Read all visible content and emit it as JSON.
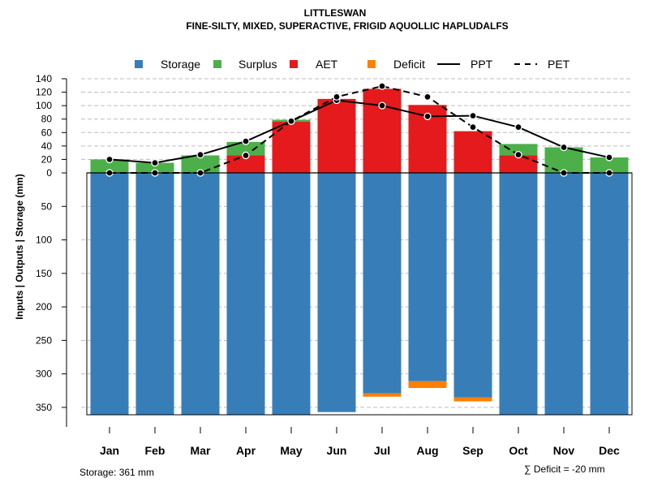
{
  "chart_data": {
    "type": "bar",
    "title": "LITTLESWAN",
    "subtitle": "FINE-SILTY, MIXED, SUPERACTIVE, FRIGID AQUOLLIC HAPLUDALFS",
    "ylabel": "Inputs | Outputs | Storage    (mm)",
    "categories": [
      "Jan",
      "Feb",
      "Mar",
      "Apr",
      "May",
      "Jun",
      "Jul",
      "Aug",
      "Sep",
      "Oct",
      "Nov",
      "Dec"
    ],
    "upper_ticks": [
      "0",
      "20",
      "40",
      "60",
      "80",
      "100",
      "120",
      "140"
    ],
    "upper_tick_values": [
      0,
      20,
      40,
      60,
      80,
      100,
      120,
      140
    ],
    "lower_ticks": [
      "50",
      "100",
      "150",
      "200",
      "250",
      "300",
      "350"
    ],
    "lower_tick_values": [
      50,
      100,
      150,
      200,
      250,
      300,
      350
    ],
    "upper_ylim": [
      0,
      140
    ],
    "lower_ylim": [
      0,
      361
    ],
    "legend": [
      {
        "key": "storage",
        "label": "Storage",
        "color": "#377EB8"
      },
      {
        "key": "surplus",
        "label": "Surplus",
        "color": "#4DAF4A"
      },
      {
        "key": "aet",
        "label": "AET",
        "color": "#E41A1C"
      },
      {
        "key": "deficit",
        "label": "Deficit",
        "color": "#FF7F00"
      },
      {
        "key": "ppt",
        "label": "PPT",
        "color": "#000000"
      },
      {
        "key": "pet",
        "label": "PET",
        "color": "#000000"
      }
    ],
    "series": [
      {
        "name": "AET",
        "values": [
          0,
          0,
          0,
          26,
          76,
          110,
          125,
          101,
          62,
          26,
          0,
          0
        ]
      },
      {
        "name": "Surplus",
        "values": [
          20,
          15,
          26,
          20,
          3,
          0,
          0,
          0,
          0,
          17,
          38,
          23
        ]
      },
      {
        "name": "PPT",
        "values": [
          20,
          15,
          27,
          47,
          77,
          108,
          100,
          84,
          85,
          68,
          38,
          23
        ]
      },
      {
        "name": "PET",
        "values": [
          0,
          0,
          0,
          26,
          77,
          113,
          129,
          113,
          68,
          27,
          0,
          0
        ]
      },
      {
        "name": "Storage",
        "values": [
          361,
          361,
          361,
          361,
          361,
          357,
          329,
          311,
          335,
          361,
          361,
          361
        ]
      },
      {
        "name": "Deficit",
        "values": [
          0,
          0,
          0,
          0,
          0,
          0,
          5,
          10,
          6,
          0,
          0,
          0
        ]
      }
    ]
  },
  "footer": {
    "storage_note": "Storage: 361 mm",
    "deficit_note": "∑ Deficit = -20 mm"
  }
}
